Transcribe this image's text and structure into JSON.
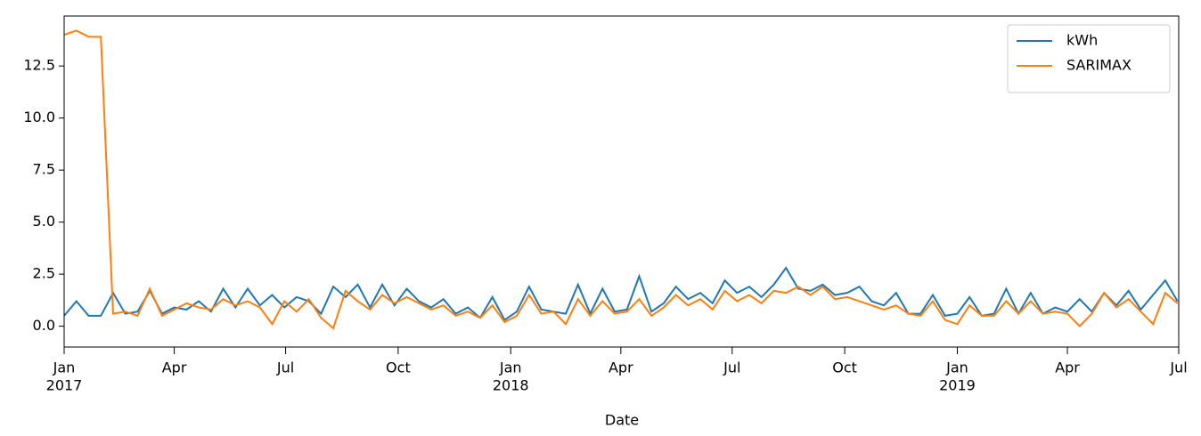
{
  "chart_data": {
    "type": "line",
    "xlabel": "Date",
    "x": [
      "2017-01-01",
      "2017-01-11",
      "2017-01-21",
      "2017-01-31",
      "2017-02-10",
      "2017-02-20",
      "2017-03-02",
      "2017-03-12",
      "2017-03-22",
      "2017-04-01",
      "2017-04-11",
      "2017-04-21",
      "2017-05-01",
      "2017-05-11",
      "2017-05-21",
      "2017-05-31",
      "2017-06-10",
      "2017-06-20",
      "2017-06-30",
      "2017-07-10",
      "2017-07-20",
      "2017-07-30",
      "2017-08-09",
      "2017-08-19",
      "2017-08-29",
      "2017-09-08",
      "2017-09-18",
      "2017-09-28",
      "2017-10-08",
      "2017-10-18",
      "2017-10-28",
      "2017-11-07",
      "2017-11-17",
      "2017-11-27",
      "2017-12-07",
      "2017-12-17",
      "2017-12-27",
      "2018-01-06",
      "2018-01-16",
      "2018-01-26",
      "2018-02-05",
      "2018-02-15",
      "2018-02-25",
      "2018-03-07",
      "2018-03-17",
      "2018-03-27",
      "2018-04-06",
      "2018-04-16",
      "2018-04-26",
      "2018-05-06",
      "2018-05-16",
      "2018-05-26",
      "2018-06-05",
      "2018-06-15",
      "2018-06-25",
      "2018-07-05",
      "2018-07-15",
      "2018-07-25",
      "2018-08-04",
      "2018-08-14",
      "2018-08-24",
      "2018-09-03",
      "2018-09-13",
      "2018-09-23",
      "2018-10-03",
      "2018-10-13",
      "2018-10-23",
      "2018-11-02",
      "2018-11-12",
      "2018-11-22",
      "2018-12-02",
      "2018-12-12",
      "2018-12-22",
      "2019-01-01",
      "2019-01-11",
      "2019-01-21",
      "2019-01-31",
      "2019-02-10",
      "2019-02-20",
      "2019-03-02",
      "2019-03-12",
      "2019-03-22",
      "2019-04-01",
      "2019-04-11",
      "2019-04-21",
      "2019-05-01",
      "2019-05-11",
      "2019-05-21",
      "2019-05-31",
      "2019-06-10",
      "2019-06-20",
      "2019-06-30"
    ],
    "series": [
      {
        "name": "kWh",
        "color": "#1f77b4",
        "values": [
          0.5,
          1.2,
          0.5,
          0.5,
          1.6,
          0.6,
          0.7,
          1.7,
          0.6,
          0.9,
          0.8,
          1.2,
          0.7,
          1.8,
          0.9,
          1.8,
          1.0,
          1.5,
          0.9,
          1.4,
          1.2,
          0.6,
          1.9,
          1.4,
          2.0,
          0.9,
          2.0,
          1.0,
          1.8,
          1.2,
          0.9,
          1.3,
          0.6,
          0.9,
          0.4,
          1.4,
          0.3,
          0.7,
          1.9,
          0.8,
          0.7,
          0.6,
          2.0,
          0.6,
          1.8,
          0.7,
          0.8,
          2.4,
          0.7,
          1.1,
          1.9,
          1.3,
          1.6,
          1.1,
          2.2,
          1.6,
          1.9,
          1.4,
          2.0,
          2.8,
          1.8,
          1.7,
          2.0,
          1.5,
          1.6,
          1.9,
          1.2,
          1.0,
          1.6,
          0.6,
          0.6,
          1.5,
          0.5,
          0.6,
          1.4,
          0.5,
          0.6,
          1.8,
          0.6,
          1.6,
          0.6,
          0.9,
          0.7,
          1.3,
          0.7,
          1.6,
          1.0,
          1.7,
          0.8,
          1.5,
          2.2,
          1.2
        ]
      },
      {
        "name": "SARIMAX",
        "color": "#ff7f0e",
        "values": [
          14.0,
          14.2,
          13.9,
          13.9,
          0.6,
          0.7,
          0.5,
          1.8,
          0.5,
          0.8,
          1.1,
          0.9,
          0.8,
          1.3,
          1.0,
          1.2,
          0.9,
          0.1,
          1.2,
          0.7,
          1.3,
          0.4,
          -0.1,
          1.7,
          1.2,
          0.8,
          1.5,
          1.1,
          1.4,
          1.1,
          0.8,
          1.0,
          0.5,
          0.7,
          0.4,
          1.0,
          0.2,
          0.5,
          1.5,
          0.6,
          0.7,
          0.1,
          1.3,
          0.5,
          1.2,
          0.6,
          0.7,
          1.3,
          0.5,
          0.9,
          1.5,
          1.0,
          1.3,
          0.8,
          1.7,
          1.2,
          1.5,
          1.1,
          1.7,
          1.6,
          1.9,
          1.5,
          1.9,
          1.3,
          1.4,
          1.2,
          1.0,
          0.8,
          1.0,
          0.6,
          0.5,
          1.2,
          0.3,
          0.1,
          1.0,
          0.5,
          0.5,
          1.2,
          0.6,
          1.2,
          0.6,
          0.7,
          0.6,
          0.0,
          0.6,
          1.6,
          0.9,
          1.3,
          0.7,
          0.1,
          1.6,
          1.1
        ]
      }
    ],
    "xlim": [
      "2017-01-01",
      "2019-07-01"
    ],
    "xticks": [
      {
        "value": "2017-01-01",
        "label": "Jan",
        "sublabel": "2017"
      },
      {
        "value": "2017-04-01",
        "label": "Apr"
      },
      {
        "value": "2017-07-01",
        "label": "Jul"
      },
      {
        "value": "2017-10-01",
        "label": "Oct"
      },
      {
        "value": "2018-01-01",
        "label": "Jan",
        "sublabel": "2018"
      },
      {
        "value": "2018-04-01",
        "label": "Apr"
      },
      {
        "value": "2018-07-01",
        "label": "Jul"
      },
      {
        "value": "2018-10-01",
        "label": "Oct"
      },
      {
        "value": "2019-01-01",
        "label": "Jan",
        "sublabel": "2019"
      },
      {
        "value": "2019-04-01",
        "label": "Apr"
      },
      {
        "value": "2019-07-01",
        "label": "Jul"
      }
    ],
    "ylim": [
      -1.0,
      14.9
    ],
    "yticks": [
      {
        "value": 0,
        "label": "0.0"
      },
      2.5,
      {
        "value": 5,
        "label": "5.0"
      },
      7.5,
      {
        "value": 10,
        "label": "10.0"
      },
      12.5
    ],
    "legend": "upper right",
    "grid": false
  }
}
